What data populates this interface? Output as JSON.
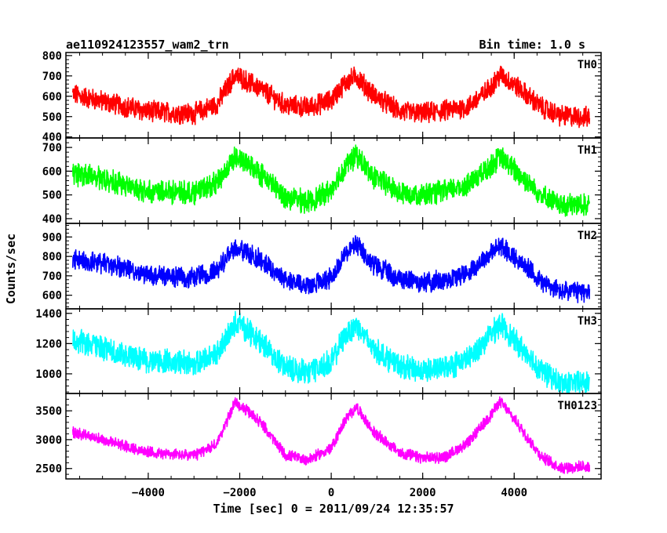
{
  "header": {
    "title": "ae110924123557_wam2_trn",
    "bin_time": "Bin time: 1.0 s"
  },
  "chart_data": {
    "type": "line",
    "title": "ae110924123557_wam2_trn",
    "subtitle": "Bin time: 1.0 s",
    "xlabel": "Time [sec] 0 = 2011/09/24 12:35:57",
    "ylabel": "Counts/sec",
    "xlim": [
      -5800,
      5900
    ],
    "xticks": [
      -4000,
      -2000,
      0,
      2000,
      4000
    ],
    "x_tick_labels": [
      "−4000",
      "−2000",
      "0",
      "2000",
      "4000"
    ],
    "grid": false,
    "legend": "none",
    "x_sample": [
      -5650,
      -5000,
      -4000,
      -3000,
      -2500,
      -2100,
      -1600,
      -1000,
      -500,
      0,
      300,
      550,
      900,
      1500,
      2000,
      2500,
      3000,
      3400,
      3700,
      4100,
      4600,
      5000,
      5650
    ],
    "panels": [
      {
        "name": "TH0",
        "color": "#ff0000",
        "ylim": [
          395,
          815
        ],
        "yticks": [
          400,
          500,
          600,
          700,
          800
        ],
        "noise": 45,
        "values": [
          610,
          575,
          525,
          515,
          560,
          705,
          645,
          555,
          545,
          580,
          665,
          700,
          610,
          525,
          515,
          530,
          550,
          625,
          705,
          640,
          545,
          505,
          495
        ]
      },
      {
        "name": "TH1",
        "color": "#00ff00",
        "ylim": [
          380,
          740
        ],
        "yticks": [
          400,
          500,
          600,
          700
        ],
        "noise": 42,
        "values": [
          590,
          570,
          515,
          510,
          550,
          660,
          600,
          490,
          470,
          520,
          620,
          665,
          580,
          510,
          500,
          515,
          545,
          610,
          660,
          590,
          500,
          455,
          460
        ]
      },
      {
        "name": "TH2",
        "color": "#0000ff",
        "ylim": [
          530,
          970
        ],
        "yticks": [
          600,
          700,
          800,
          900
        ],
        "noise": 45,
        "values": [
          785,
          765,
          705,
          690,
          730,
          850,
          790,
          680,
          650,
          690,
          810,
          860,
          760,
          685,
          665,
          680,
          720,
          800,
          855,
          780,
          670,
          620,
          615
        ]
      },
      {
        "name": "TH3",
        "color": "#00ffff",
        "ylim": [
          870,
          1430
        ],
        "yticks": [
          1000,
          1200,
          1400
        ],
        "noise": 70,
        "values": [
          1230,
          1170,
          1080,
          1070,
          1130,
          1340,
          1230,
          1040,
          1010,
          1080,
          1250,
          1330,
          1170,
          1050,
          1020,
          1040,
          1100,
          1230,
          1330,
          1190,
          1020,
          935,
          940
        ]
      },
      {
        "name": "TH0123",
        "color": "#ff00ff",
        "ylim": [
          2320,
          3800
        ],
        "yticks": [
          2500,
          3000,
          3500
        ],
        "noise": 85,
        "values": [
          3140,
          3000,
          2780,
          2720,
          2930,
          3650,
          3350,
          2730,
          2650,
          2850,
          3330,
          3570,
          3150,
          2770,
          2680,
          2700,
          2950,
          3340,
          3660,
          3250,
          2700,
          2520,
          2530
        ]
      }
    ]
  }
}
